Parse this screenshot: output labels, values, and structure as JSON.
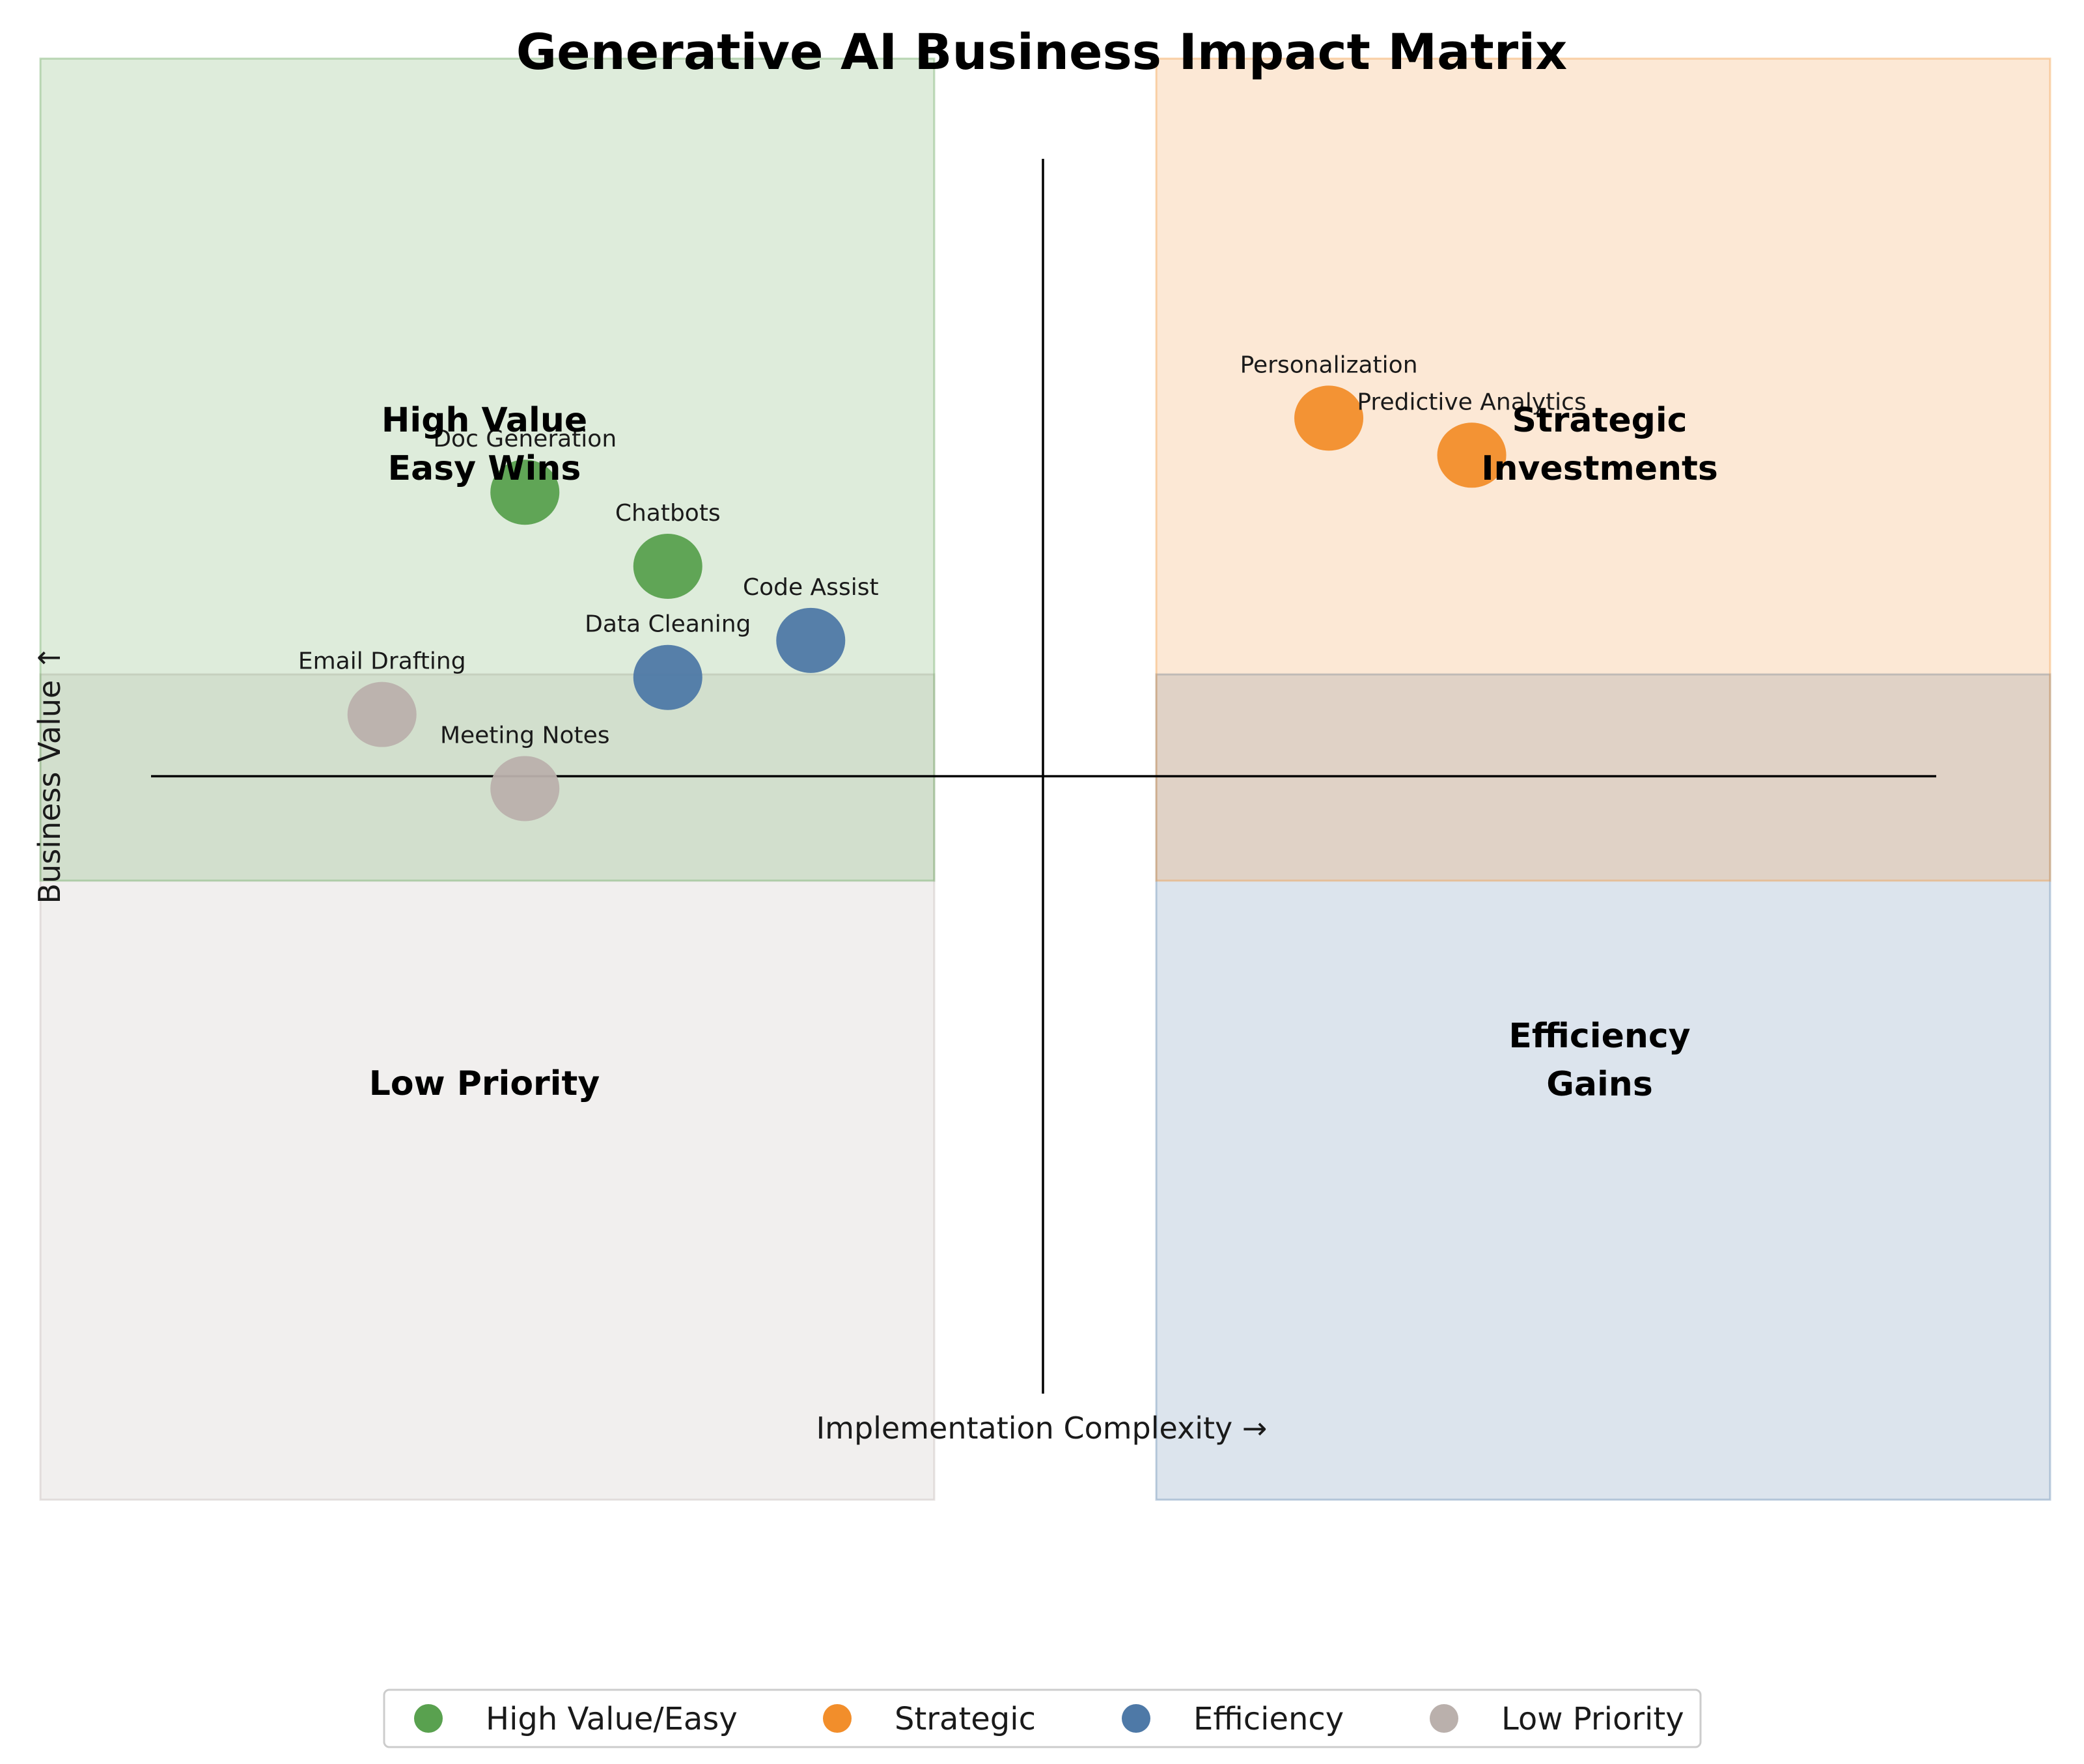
{
  "chart_data": {
    "type": "scatter",
    "title": "Generative AI Business Impact Matrix",
    "xlabel": "Implementation Complexity →",
    "ylabel": "Business Value ↑",
    "xlim": [
      0,
      10
    ],
    "ylim": [
      0,
      10
    ],
    "grid": false,
    "legend_position": "bottom-center",
    "quadrants": [
      {
        "key": "high",
        "label": "High Value\nEasy Wins",
        "color": "#5a9e4b",
        "x_range": [
          0,
          5
        ],
        "y_range": [
          5,
          10
        ]
      },
      {
        "key": "strategic",
        "label": "Strategic\nInvestments",
        "color": "#f28e2b",
        "x_range": [
          5,
          10
        ],
        "y_range": [
          5,
          10
        ]
      },
      {
        "key": "low",
        "label": "Low Priority",
        "color": "#bab0ac",
        "x_range": [
          0,
          5
        ],
        "y_range": [
          0,
          5
        ]
      },
      {
        "key": "efficiency",
        "label": "Efficiency\nGains",
        "color": "#4e79a7",
        "x_range": [
          5,
          10
        ],
        "y_range": [
          0,
          5
        ]
      }
    ],
    "series": [
      {
        "name": "High Value/Easy",
        "color": "#59a14f",
        "points": [
          {
            "label": "Doc Generation",
            "x": 2.1,
            "y": 7.3
          },
          {
            "label": "Chatbots",
            "x": 2.9,
            "y": 6.7
          }
        ]
      },
      {
        "name": "Strategic",
        "color": "#f28e2b",
        "points": [
          {
            "label": "Personalization",
            "x": 6.6,
            "y": 7.9
          },
          {
            "label": "Predictive Analytics",
            "x": 7.4,
            "y": 7.6
          }
        ]
      },
      {
        "name": "Efficiency",
        "color": "#4e79a7",
        "points": [
          {
            "label": "Code Assist",
            "x": 3.7,
            "y": 6.1
          },
          {
            "label": "Data Cleaning",
            "x": 2.9,
            "y": 5.8
          }
        ]
      },
      {
        "name": "Low Priority",
        "color": "#bab0ac",
        "points": [
          {
            "label": "Email Drafting",
            "x": 1.3,
            "y": 5.5
          },
          {
            "label": "Meeting Notes",
            "x": 2.1,
            "y": 4.9
          }
        ]
      }
    ]
  }
}
